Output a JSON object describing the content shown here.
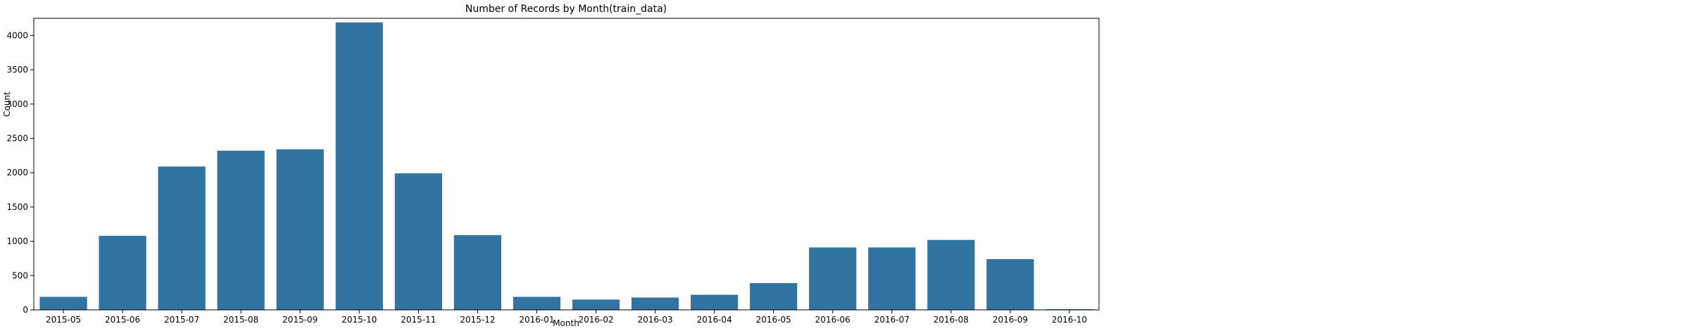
{
  "chart_data": {
    "type": "bar",
    "title": "Number of Records by Month(train_data)",
    "xlabel": "Month",
    "ylabel": "Count",
    "ylim": [
      0,
      4250
    ],
    "yticks": [
      0,
      500,
      1000,
      1500,
      2000,
      2500,
      3000,
      3500,
      4000
    ],
    "categories": [
      "2015-05",
      "2015-06",
      "2015-07",
      "2015-08",
      "2015-09",
      "2015-10",
      "2015-11",
      "2015-12",
      "2016-01",
      "2016-02",
      "2016-03",
      "2016-04",
      "2016-05",
      "2016-06",
      "2016-07",
      "2016-08",
      "2016-09",
      "2016-10"
    ],
    "values": [
      190,
      1080,
      2090,
      2320,
      2340,
      4190,
      1990,
      1090,
      190,
      150,
      180,
      220,
      390,
      910,
      910,
      1020,
      740,
      10
    ],
    "bar_color": "#3274a1",
    "grid": false,
    "legend": "none"
  }
}
